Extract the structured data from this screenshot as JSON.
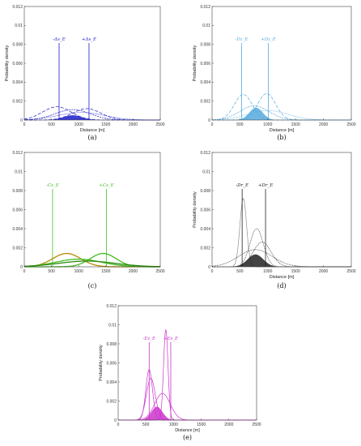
{
  "chart_data": [
    {
      "type": "line",
      "panel_label": "(a)",
      "xlabel": "Distance [m]",
      "ylabel": "Probability density",
      "xlim": [
        0,
        2500
      ],
      "ylim": [
        0,
        0.012
      ],
      "xticks": [
        "0",
        "500",
        "1000",
        "1500",
        "2000",
        "2500"
      ],
      "yticks": [
        "0",
        "0.002",
        "0.004",
        "0.006",
        "0.008",
        "0.01",
        "0.012"
      ],
      "color": "#1a1acc",
      "bounds": [
        {
          "label": "-Δs_E",
          "x": 640
        },
        {
          "label": "+Δs_E",
          "x": 1190
        }
      ],
      "curves": [
        {
          "mu": 600,
          "sigma": 260,
          "amp": 0.0014,
          "dash": "4,2"
        },
        {
          "mu": 1150,
          "sigma": 260,
          "amp": 0.0012,
          "dash": "4,2"
        },
        {
          "mu": 890,
          "sigma": 320,
          "amp": 0.0011,
          "dash": "2,1"
        },
        {
          "mu": 1050,
          "sigma": 420,
          "amp": 0.0008,
          "dash": "1,1"
        },
        {
          "mu": 890,
          "sigma": 170,
          "amp": 0.0005,
          "fill": true
        }
      ]
    },
    {
      "type": "line",
      "panel_label": "(b)",
      "xlabel": "Distance [m]",
      "ylabel": "Probability density",
      "xlim": [
        0,
        2500
      ],
      "ylim": [
        0,
        0.012
      ],
      "xticks": [
        "0",
        "500",
        "1000",
        "1500",
        "2000",
        "2500"
      ],
      "yticks": [
        "0",
        "0.002",
        "0.004",
        "0.006",
        "0.008",
        "0.01",
        "0.012"
      ],
      "color": "#55aadd",
      "bounds": [
        {
          "label": "-Dz_E",
          "x": 530
        },
        {
          "label": "+Dz_E",
          "x": 1010
        }
      ],
      "curves": [
        {
          "mu": 560,
          "sigma": 160,
          "amp": 0.0027,
          "dash": "4,2"
        },
        {
          "mu": 980,
          "sigma": 160,
          "amp": 0.0028,
          "dash": "4,2"
        },
        {
          "mu": 760,
          "sigma": 260,
          "amp": 0.0015,
          "dash": "2,1"
        },
        {
          "mu": 1000,
          "sigma": 360,
          "amp": 0.001,
          "dash": "1,1"
        },
        {
          "mu": 790,
          "sigma": 120,
          "amp": 0.0013,
          "fill": true
        }
      ]
    },
    {
      "type": "line",
      "panel_label": "(c)",
      "xlabel": "",
      "ylabel": "",
      "xlim": [
        0,
        2500
      ],
      "ylim": [
        0,
        0.012
      ],
      "xticks": [
        "0",
        "500",
        "1000",
        "1500",
        "2000",
        "2500"
      ],
      "yticks": [
        "0",
        "0.002",
        "0.004",
        "0.006",
        "0.008",
        "0.01",
        "0.012"
      ],
      "color": "#44bb22",
      "bounds": [
        {
          "label": "-Cs_E",
          "x": 520
        },
        {
          "label": "+Cs_E",
          "x": 1510
        }
      ],
      "curves": [
        {
          "mu": 780,
          "sigma": 260,
          "amp": 0.0014,
          "color": "#bb8800"
        },
        {
          "mu": 1450,
          "sigma": 240,
          "amp": 0.0014,
          "color": "#44bb22"
        },
        {
          "mu": 1000,
          "sigma": 420,
          "amp": 0.0008,
          "color": "#44bb22"
        },
        {
          "mu": 1150,
          "sigma": 520,
          "amp": 0.0006,
          "color": "#2d8a12"
        }
      ]
    },
    {
      "type": "line",
      "panel_label": "(d)",
      "xlabel": "Distance [m]",
      "ylabel": "Probability density",
      "xlim": [
        0,
        2500
      ],
      "ylim": [
        0,
        0.012
      ],
      "xticks": [
        "0",
        "500",
        "1000",
        "1500",
        "2000",
        "2500"
      ],
      "yticks": [
        "0",
        "0.002",
        "0.004",
        "0.006",
        "0.008",
        "0.01",
        "0.012"
      ],
      "color": "#222222",
      "bounds": [
        {
          "label": "-Dr_E",
          "x": 540
        },
        {
          "label": "+Dr_E",
          "x": 960
        }
      ],
      "curves": [
        {
          "mu": 560,
          "sigma": 60,
          "amp": 0.0072,
          "dash": "1,1"
        },
        {
          "mu": 800,
          "sigma": 120,
          "amp": 0.004,
          "dash": "1,1"
        },
        {
          "mu": 900,
          "sigma": 160,
          "amp": 0.0026,
          "dash": "1,1"
        },
        {
          "mu": 780,
          "sigma": 300,
          "amp": 0.0018,
          "dash": "1,1"
        },
        {
          "mu": 780,
          "sigma": 140,
          "amp": 0.0013,
          "fill": true
        }
      ]
    },
    {
      "type": "line",
      "panel_label": "(e)",
      "xlabel": "Distance [m]",
      "ylabel": "Probability density",
      "xlim": [
        0,
        2500
      ],
      "ylim": [
        0,
        0.012
      ],
      "xticks": [
        "0",
        "500",
        "1000",
        "1500",
        "2000",
        "2500"
      ],
      "yticks": [
        "0",
        "0.002",
        "0.004",
        "0.006",
        "0.008",
        "0.01",
        "0.012"
      ],
      "color": "#cc33cc",
      "bounds": [
        {
          "label": "-Es_E",
          "x": 560
        },
        {
          "label": "+Es_E",
          "x": 950
        }
      ],
      "curves": [
        {
          "mu": 560,
          "sigma": 60,
          "amp": 0.0053
        },
        {
          "mu": 860,
          "sigma": 40,
          "amp": 0.0095
        },
        {
          "mu": 590,
          "sigma": 80,
          "amp": 0.0044
        },
        {
          "mu": 800,
          "sigma": 140,
          "amp": 0.0028
        },
        {
          "mu": 700,
          "sigma": 100,
          "amp": 0.0014,
          "fill": true
        }
      ]
    }
  ]
}
